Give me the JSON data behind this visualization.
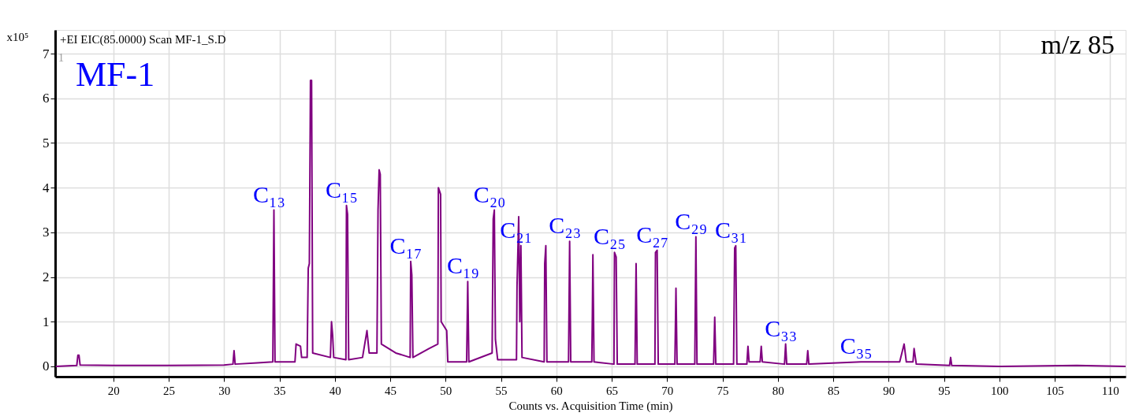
{
  "chart_data": {
    "type": "line",
    "title": "+EI EIC(85.0000) Scan MF-1_S.D",
    "xlabel": "Counts vs. Acquisition Time (min)",
    "ylabel": "x10⁵",
    "xlim": [
      14.75,
      111.4
    ],
    "ylim": [
      -0.23,
      7.53
    ],
    "xticks": [
      20,
      25,
      30,
      35,
      40,
      45,
      50,
      55,
      60,
      65,
      70,
      75,
      80,
      85,
      90,
      95,
      100,
      105,
      110
    ],
    "yticks": [
      {
        "value": 0,
        "label": "0"
      },
      {
        "value": 1,
        "label": "1"
      },
      {
        "value": 2,
        "label": "2"
      },
      {
        "value": 3,
        "label": "3"
      },
      {
        "value": 4,
        "label": "4"
      },
      {
        "value": 5,
        "label": "5"
      },
      {
        "value": 6,
        "label": "6"
      },
      {
        "value": 7,
        "label": "7"
      }
    ],
    "grid": true,
    "marker": "none",
    "line_style": "solid",
    "series": [
      {
        "color": "#800080",
        "x": [
          14.8,
          16.7,
          16.8,
          16.9,
          17.0,
          20,
          25,
          30,
          30.8,
          30.9,
          31.0,
          33,
          34.4,
          34.5,
          34.6,
          36.4,
          36.5,
          36.9,
          37.0,
          37.5,
          37.6,
          37.7,
          37.8,
          37.9,
          38.0,
          39.6,
          39.7,
          39.8,
          39.9,
          41.0,
          41.05,
          41.15,
          41.25,
          42.5,
          42.9,
          43.1,
          43.8,
          43.9,
          44.0,
          44.1,
          44.2,
          45.5,
          46.8,
          46.85,
          46.95,
          47.05,
          48.5,
          49.3,
          49.35,
          49.55,
          49.6,
          50.1,
          50.2,
          51.9,
          52.0,
          52.1,
          54.2,
          54.3,
          54.4,
          54.5,
          54.7,
          56.4,
          56.45,
          56.6,
          56.7,
          56.8,
          56.9,
          58.9,
          58.95,
          59.05,
          59.15,
          61.1,
          61.2,
          61.3,
          63.2,
          63.25,
          63.3,
          63.4,
          65.2,
          65.25,
          65.4,
          65.5,
          67.1,
          67.2,
          67.3,
          68.9,
          68.95,
          69.1,
          69.2,
          70.7,
          70.8,
          70.9,
          72.5,
          72.6,
          72.7,
          74.2,
          74.3,
          74.4,
          76.0,
          76.1,
          76.2,
          76.3,
          77.2,
          77.3,
          77.4,
          78.4,
          78.5,
          78.6,
          80.6,
          80.7,
          80.8,
          82.6,
          82.7,
          82.8,
          87.5,
          91.0,
          91.4,
          91.6,
          92.2,
          92.3,
          92.5,
          95.5,
          95.6,
          95.7,
          100,
          107,
          111.4
        ],
        "values": [
          0.0,
          0.02,
          0.25,
          0.25,
          0.03,
          0.02,
          0.02,
          0.03,
          0.05,
          0.35,
          0.05,
          0.08,
          0.1,
          3.5,
          0.1,
          0.1,
          0.5,
          0.45,
          0.2,
          0.2,
          2.2,
          2.3,
          6.4,
          6.4,
          0.3,
          0.2,
          1.0,
          0.7,
          0.2,
          0.15,
          3.6,
          3.4,
          0.15,
          0.2,
          0.8,
          0.3,
          0.3,
          3.5,
          4.4,
          4.3,
          0.5,
          0.3,
          0.2,
          2.35,
          2.05,
          0.2,
          0.4,
          0.5,
          4.0,
          3.85,
          1.0,
          0.8,
          0.1,
          0.1,
          1.9,
          0.1,
          0.3,
          3.3,
          3.5,
          0.6,
          0.15,
          0.15,
          1.8,
          3.35,
          1.0,
          2.7,
          0.2,
          0.1,
          2.3,
          2.7,
          0.1,
          0.1,
          2.8,
          0.1,
          0.1,
          1.1,
          2.5,
          0.1,
          0.05,
          2.55,
          2.45,
          0.05,
          0.05,
          2.3,
          0.05,
          0.05,
          2.55,
          2.6,
          0.05,
          0.05,
          1.75,
          0.05,
          0.05,
          2.9,
          0.05,
          0.05,
          1.1,
          0.05,
          0.05,
          2.65,
          2.7,
          0.05,
          0.05,
          0.45,
          0.1,
          0.1,
          0.45,
          0.1,
          0.05,
          0.5,
          0.05,
          0.05,
          0.35,
          0.05,
          0.1,
          0.1,
          0.5,
          0.1,
          0.1,
          0.4,
          0.05,
          0.02,
          0.2,
          0.02,
          0.0,
          0.02,
          0.0
        ]
      }
    ],
    "annotations": [
      "MF-1",
      "m/z 85",
      "1",
      {
        "text": "C₁₃",
        "x": 34.5,
        "y": 3.5
      },
      {
        "text": "C₁₅",
        "x": 41.05,
        "y": 3.6
      },
      {
        "text": "C₁₇",
        "x": 46.85,
        "y": 2.35
      },
      {
        "text": "C₁₉",
        "x": 52.0,
        "y": 1.9
      },
      {
        "text": "C₂₀",
        "x": 54.4,
        "y": 3.5
      },
      {
        "text": "C₂₁",
        "x": 56.8,
        "y": 2.7
      },
      {
        "text": "C₂₃",
        "x": 61.2,
        "y": 2.8
      },
      {
        "text": "C₂₅",
        "x": 65.25,
        "y": 2.55
      },
      {
        "text": "C₂₇",
        "x": 69.1,
        "y": 2.6
      },
      {
        "text": "C₂₉",
        "x": 72.6,
        "y": 2.9
      },
      {
        "text": "C₃₁",
        "x": 76.2,
        "y": 2.7
      },
      {
        "text": "C₃₃",
        "x": 80.7,
        "y": 0.5
      },
      {
        "text": "C₃₅",
        "x": 87.5,
        "y": 0.1
      }
    ]
  }
}
